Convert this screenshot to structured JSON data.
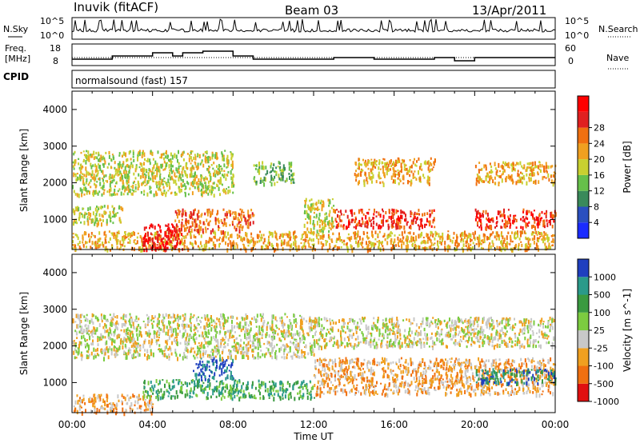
{
  "header": {
    "station": "Inuvik  (fitACF)",
    "beam": "Beam 03",
    "date": "13/Apr/2011"
  },
  "top_panels": {
    "nsky": {
      "label": "N.Sky",
      "ticks": [
        "10^5",
        "10^0"
      ],
      "right_label": "N.Search",
      "right_ticks": [
        "10^5",
        "10^0"
      ]
    },
    "freq": {
      "label_line1": "Freq.",
      "label_line2": "[MHz]",
      "ticks": [
        "18",
        "8"
      ],
      "right_label": "Nave",
      "right_ticks": [
        "60",
        "0"
      ]
    },
    "cpid": {
      "label": "CPID",
      "value": "normalsound (fast) 157"
    }
  },
  "x_axis": {
    "label": "Time UT",
    "ticks": [
      "00:00",
      "04:00",
      "08:00",
      "12:00",
      "16:00",
      "20:00",
      "00:00"
    ]
  },
  "chart_data": [
    {
      "type": "heatmap",
      "name": "power-panel",
      "ylabel": "Slant Range [km]",
      "yticks": [
        1000,
        2000,
        3000,
        4000
      ],
      "ylim": [
        180,
        4500
      ],
      "xlim_hours": [
        0,
        24
      ],
      "colorbar": {
        "label": "Power [dB]",
        "ticks": [
          "4",
          "8",
          "12",
          "16",
          "20",
          "24",
          "28"
        ],
        "colors": [
          "#1a2bff",
          "#2a4fbf",
          "#3a8a5a",
          "#66c04a",
          "#c8d030",
          "#f0a020",
          "#f07010",
          "#e02020",
          "#ff0000"
        ]
      },
      "regions": [
        {
          "x": [
            0,
            24
          ],
          "y": [
            200,
            700
          ],
          "level": 5
        },
        {
          "x": [
            3.5,
            5.5
          ],
          "y": [
            200,
            900
          ],
          "level": 8
        },
        {
          "x": [
            0,
            2.5
          ],
          "y": [
            900,
            1400
          ],
          "level": 4
        },
        {
          "x": [
            0,
            8
          ],
          "y": [
            1700,
            2900
          ],
          "level": 4
        },
        {
          "x": [
            5,
            9
          ],
          "y": [
            700,
            1300
          ],
          "level": 6
        },
        {
          "x": [
            9,
            11
          ],
          "y": [
            2000,
            2600
          ],
          "level": 3
        },
        {
          "x": [
            11.5,
            13
          ],
          "y": [
            700,
            1600
          ],
          "level": 4
        },
        {
          "x": [
            13,
            18
          ],
          "y": [
            800,
            1300
          ],
          "level": 7
        },
        {
          "x": [
            14,
            18
          ],
          "y": [
            2000,
            2700
          ],
          "level": 5
        },
        {
          "x": [
            20,
            24
          ],
          "y": [
            800,
            1300
          ],
          "level": 7
        },
        {
          "x": [
            20,
            24
          ],
          "y": [
            2000,
            2600
          ],
          "level": 5
        }
      ]
    },
    {
      "type": "heatmap",
      "name": "velocity-panel",
      "ylabel": "Slant Range [km]",
      "yticks": [
        1000,
        2000,
        3000,
        4000
      ],
      "ylim": [
        180,
        4500
      ],
      "xlim_hours": [
        0,
        24
      ],
      "colorbar": {
        "label": "Velocity [m s^-1]",
        "ticks": [
          "1000",
          "500",
          "100",
          "25",
          "-25",
          "-100",
          "-500",
          "-1000"
        ],
        "colors": [
          "#1f3fbf",
          "#2a9a8a",
          "#3a9a40",
          "#7ccc40",
          "#c8c8c8",
          "#f0a020",
          "#f07010",
          "#e01010"
        ]
      },
      "regions": [
        {
          "x": [
            0,
            4
          ],
          "y": [
            200,
            700
          ],
          "level": 5
        },
        {
          "x": [
            3.5,
            12
          ],
          "y": [
            600,
            1100
          ],
          "level": 2
        },
        {
          "x": [
            6,
            8
          ],
          "y": [
            1100,
            1700
          ],
          "level": 0
        },
        {
          "x": [
            0,
            12
          ],
          "y": [
            1700,
            2900
          ],
          "level": 4
        },
        {
          "x": [
            12,
            24
          ],
          "y": [
            700,
            1700
          ],
          "level": 5
        },
        {
          "x": [
            20,
            24
          ],
          "y": [
            1000,
            1400
          ],
          "level": 1
        },
        {
          "x": [
            12,
            24
          ],
          "y": [
            2000,
            2800
          ],
          "level": 4
        }
      ]
    }
  ]
}
